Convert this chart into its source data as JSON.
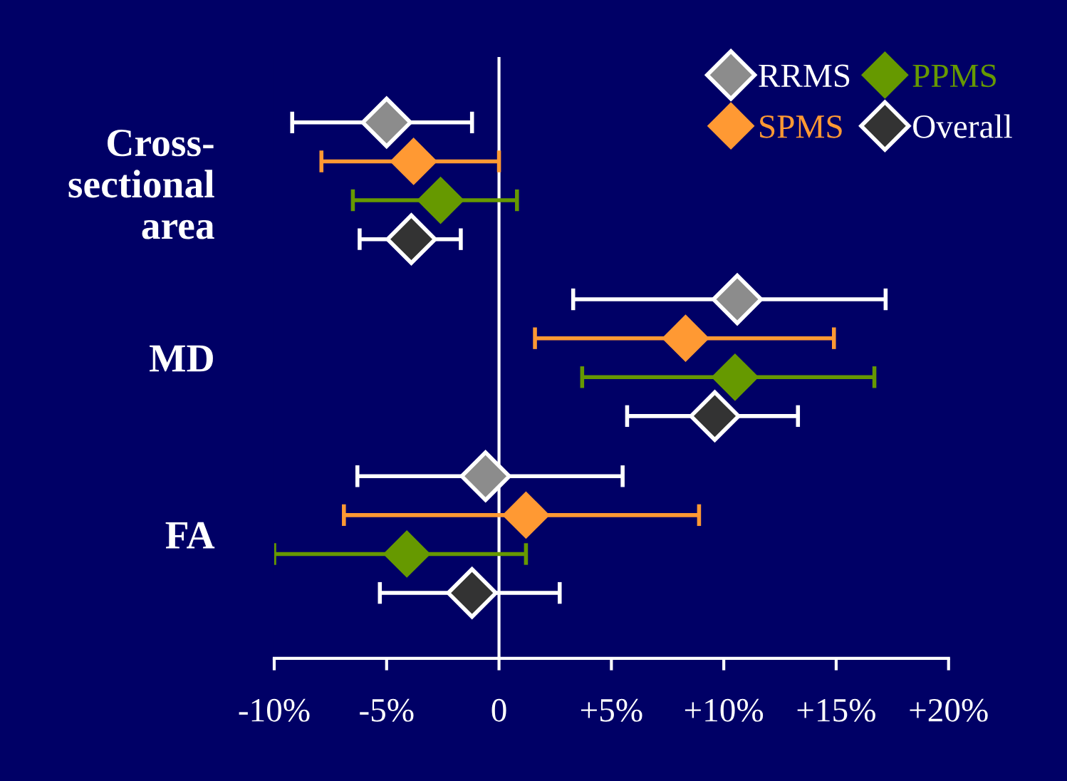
{
  "chart_data": {
    "type": "scatter",
    "orientation": "horizontal",
    "marker": "diamond",
    "legend": "top right",
    "grid": false,
    "categories": [
      "Cross-\nsectional\narea",
      "MD",
      "FA"
    ],
    "xlim": [
      -10,
      20
    ],
    "xticks": [
      {
        "value": -10,
        "label": "-10%"
      },
      {
        "value": -5,
        "label": "-5%"
      },
      0,
      {
        "value": 5,
        "label": "+5%"
      },
      {
        "value": 10,
        "label": "+10%"
      },
      {
        "value": 15,
        "label": "+15%"
      },
      {
        "value": 20,
        "label": "+20%"
      }
    ],
    "ref_lines": [
      {
        "axis": "x",
        "value": 0,
        "color": "#ffffff"
      }
    ],
    "series": [
      {
        "name": "RRMS",
        "color": "#8c8c8c",
        "values": [
          -5.0,
          10.6,
          -0.6
        ],
        "errors": [
          [
            -9.2,
            -1.2
          ],
          [
            3.3,
            17.2
          ],
          [
            -6.3,
            5.5
          ]
        ]
      },
      {
        "name": "SPMS",
        "color": "#ff9933",
        "values": [
          -3.8,
          8.3,
          1.2
        ],
        "errors": [
          [
            -7.9,
            0.0
          ],
          [
            1.6,
            14.9
          ],
          [
            -6.9,
            8.9
          ]
        ]
      },
      {
        "name": "PPMS",
        "color": "#669900",
        "values": [
          -2.6,
          10.5,
          -4.1
        ],
        "errors": [
          [
            -6.5,
            0.8
          ],
          [
            3.7,
            16.7
          ],
          [
            -10.0,
            1.2
          ]
        ]
      },
      {
        "name": "Overall",
        "color": "#333333",
        "values": [
          -3.9,
          9.6,
          -1.2
        ],
        "errors": [
          [
            -6.2,
            -1.7
          ],
          [
            5.7,
            13.3
          ],
          [
            -5.3,
            2.7
          ]
        ]
      }
    ]
  }
}
